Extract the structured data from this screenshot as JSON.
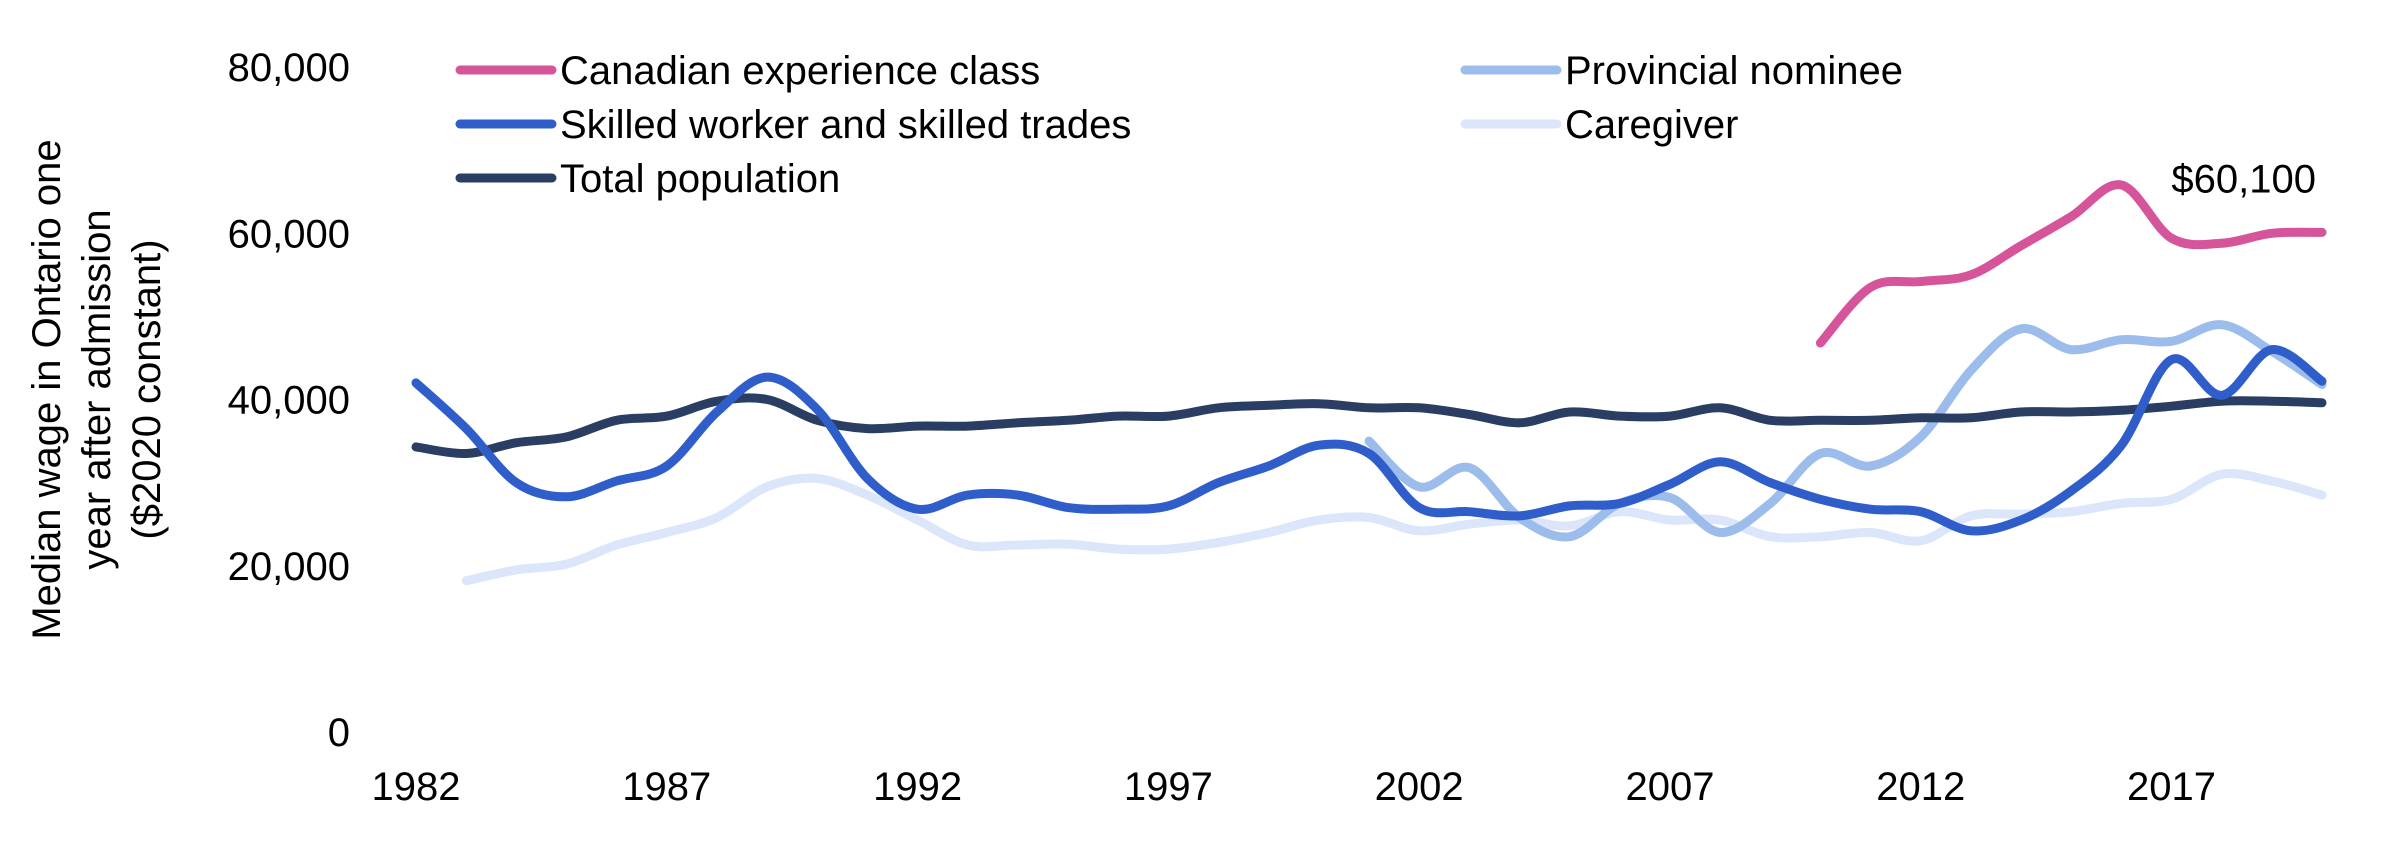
{
  "chart_data": {
    "type": "line",
    "title": "",
    "xlabel": "",
    "ylabel": [
      "Median wage in Ontario one",
      "year after admission",
      "($2020 constant)"
    ],
    "x_ticks": [
      "1982",
      "1987",
      "1992",
      "1997",
      "2002",
      "2007",
      "2012",
      "2017"
    ],
    "y_ticks": [
      "0",
      "20,000",
      "40,000",
      "60,000",
      "80,000"
    ],
    "xlim": [
      1982,
      2020
    ],
    "ylim": [
      0,
      80000
    ],
    "grid": false,
    "legend_position": "top",
    "annotations": [
      {
        "text": "$60,100",
        "series": "Canadian experience class",
        "x": 2020
      }
    ],
    "series": [
      {
        "name": "Canadian experience class",
        "color": "#d6559a",
        "x": [
          2010,
          2011,
          2012,
          2013,
          2014,
          2015,
          2016,
          2017,
          2018,
          2019,
          2020
        ],
        "values": [
          46800,
          53500,
          54200,
          55000,
          58500,
          62000,
          65800,
          59400,
          58800,
          60000,
          60100
        ]
      },
      {
        "name": "Provincial nominee",
        "color": "#9cbcec",
        "x": [
          2001,
          2002,
          2003,
          2004,
          2005,
          2006,
          2007,
          2008,
          2009,
          2010,
          2011,
          2012,
          2013,
          2014,
          2015,
          2016,
          2017,
          2018,
          2019,
          2020
        ],
        "values": [
          35000,
          29500,
          31800,
          25800,
          23500,
          27500,
          28200,
          24000,
          27500,
          33500,
          32000,
          35500,
          43500,
          48500,
          46000,
          47200,
          47000,
          49000,
          45800,
          41800
        ]
      },
      {
        "name": "Skilled worker and skilled trades",
        "color": "#2f5ecb",
        "x": [
          1982,
          1983,
          1984,
          1985,
          1986,
          1987,
          1988,
          1989,
          1990,
          1991,
          1992,
          1993,
          1994,
          1995,
          1996,
          1997,
          1998,
          1999,
          2000,
          2001,
          2002,
          2003,
          2004,
          2005,
          2006,
          2007,
          2008,
          2009,
          2010,
          2011,
          2012,
          2013,
          2014,
          2015,
          2016,
          2017,
          2018,
          2019,
          2020
        ],
        "values": [
          42000,
          36500,
          30000,
          28300,
          30200,
          32000,
          38500,
          42700,
          38800,
          30500,
          26800,
          28500,
          28500,
          27000,
          26800,
          27200,
          30000,
          32000,
          34500,
          33500,
          27000,
          26500,
          26000,
          27200,
          27500,
          29800,
          32500,
          30000,
          28000,
          26800,
          26500,
          24200,
          25500,
          29000,
          34500,
          44800,
          40500,
          46000,
          42200
        ]
      },
      {
        "name": "Caregiver",
        "color": "#dbe6fa",
        "x": [
          1983,
          1984,
          1985,
          1986,
          1987,
          1988,
          1989,
          1990,
          1991,
          1992,
          1993,
          1994,
          1995,
          1996,
          1997,
          1998,
          1999,
          2000,
          2001,
          2002,
          2003,
          2004,
          2005,
          2006,
          2007,
          2008,
          2009,
          2010,
          2011,
          2012,
          2013,
          2014,
          2015,
          2016,
          2017,
          2018,
          2019,
          2020
        ],
        "values": [
          18200,
          19500,
          20200,
          22500,
          24000,
          25800,
          29500,
          30500,
          28500,
          25500,
          22500,
          22500,
          22600,
          22000,
          22000,
          22800,
          24000,
          25500,
          25800,
          24200,
          25000,
          25500,
          24800,
          26500,
          25500,
          25500,
          23500,
          23500,
          24000,
          23000,
          26000,
          26200,
          26500,
          27500,
          28000,
          31000,
          30200,
          28500
        ]
      },
      {
        "name": "Total population",
        "color": "#2a3e63",
        "x": [
          1982,
          1983,
          1984,
          1985,
          1986,
          1987,
          1988,
          1989,
          1990,
          1991,
          1992,
          1993,
          1994,
          1995,
          1996,
          1997,
          1998,
          1999,
          2000,
          2001,
          2002,
          2003,
          2004,
          2005,
          2006,
          2007,
          2008,
          2009,
          2010,
          2011,
          2012,
          2013,
          2014,
          2015,
          2016,
          2017,
          2018,
          2019,
          2020
        ],
        "values": [
          34300,
          33500,
          34800,
          35500,
          37500,
          38000,
          39800,
          40000,
          37500,
          36500,
          36800,
          36800,
          37200,
          37500,
          38000,
          38000,
          39000,
          39300,
          39500,
          39000,
          39000,
          38200,
          37200,
          38500,
          38000,
          38000,
          39000,
          37500,
          37500,
          37500,
          37800,
          37800,
          38500,
          38500,
          38700,
          39200,
          39800,
          39800,
          39600
        ]
      }
    ]
  }
}
